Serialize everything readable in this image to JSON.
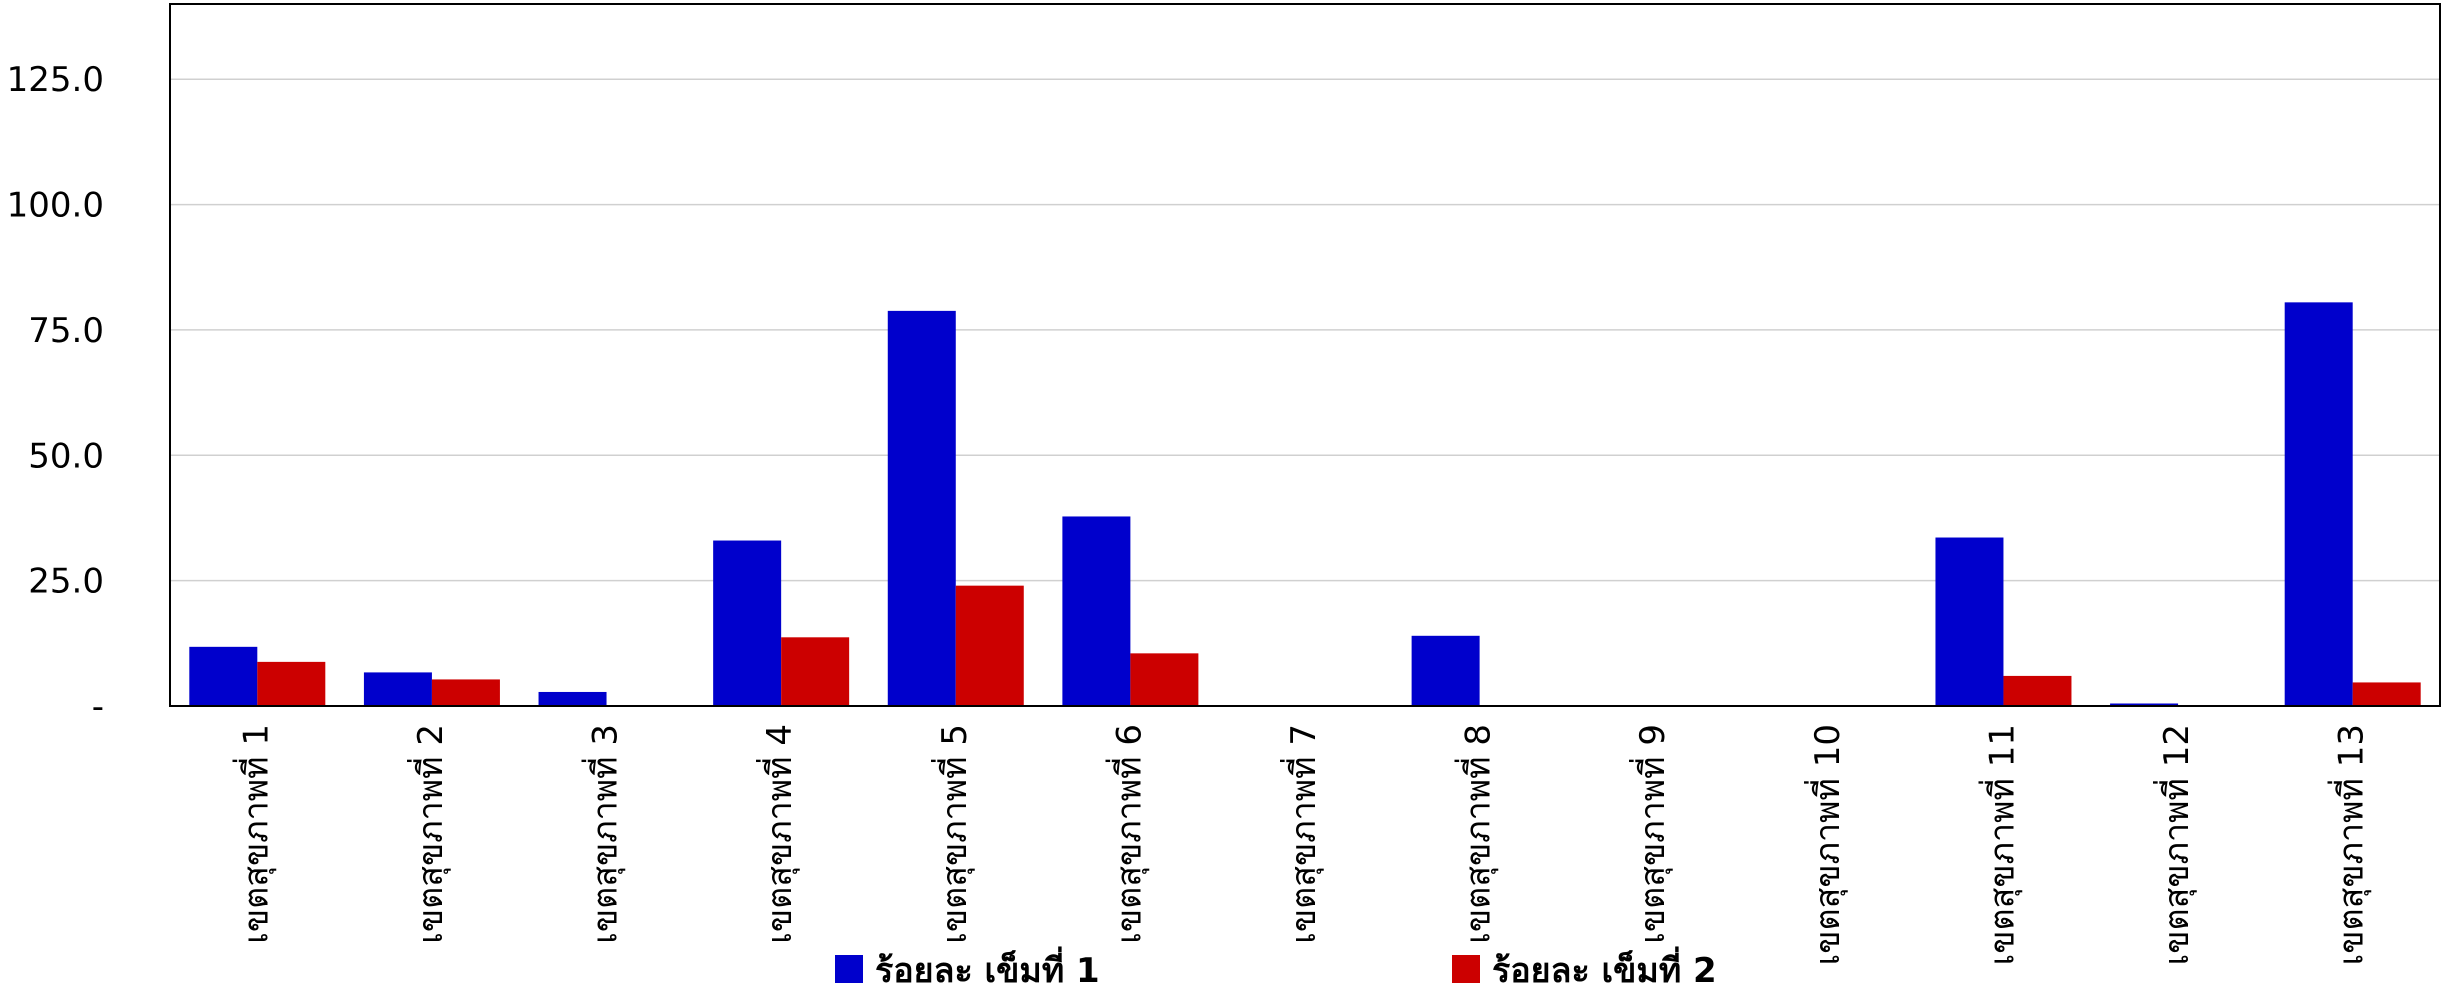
{
  "chart_data": {
    "type": "bar",
    "categories": [
      "เขตสุขภาพที่ 1",
      "เขตสุขภาพที่ 2",
      "เขตสุขภาพที่ 3",
      "เขตสุขภาพที่ 4",
      "เขตสุขภาพที่ 5",
      "เขตสุขภาพที่ 6",
      "เขตสุขภาพที่ 7",
      "เขตสุขภาพที่ 8",
      "เขตสุขภาพที่ 9",
      "เขตสุขภาพที่ 10",
      "เขตสุขภาพที่ 11",
      "เขตสุขภาพที่ 12",
      "เขตสุขภาพที่ 13"
    ],
    "series": [
      {
        "name": "ร้อยละ เข็มที่ 1",
        "color": "#0000cc",
        "values": [
          11.8,
          6.7,
          2.8,
          33.0,
          78.8,
          37.8,
          0,
          14.0,
          0,
          0,
          33.6,
          0.5,
          80.5
        ]
      },
      {
        "name": "ร้อยละ เข็มที่ 2",
        "color": "#cc0000",
        "values": [
          8.8,
          5.3,
          0,
          13.7,
          24.0,
          10.5,
          0,
          0,
          0,
          0,
          6.0,
          0,
          4.7
        ]
      }
    ],
    "ylim": [
      0,
      140
    ],
    "y_ticks": [
      {
        "value": 0,
        "label": "-"
      },
      {
        "value": 25,
        "label": "25.0"
      },
      {
        "value": 50,
        "label": "50.0"
      },
      {
        "value": 75,
        "label": "75.0"
      },
      {
        "value": 100,
        "label": "100.0"
      },
      {
        "value": 125,
        "label": "125.0"
      }
    ],
    "grid": true,
    "legend_position": "bottom"
  }
}
